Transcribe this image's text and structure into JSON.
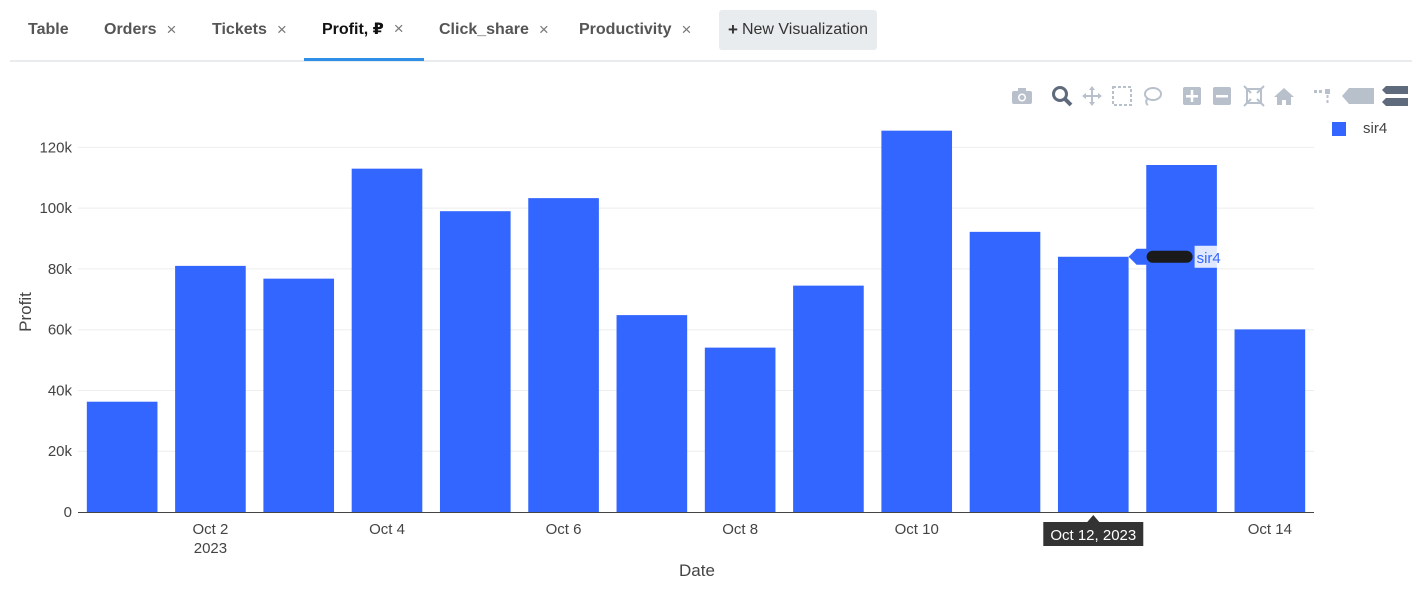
{
  "tabs": [
    {
      "label": "Table",
      "closable": false,
      "active": false
    },
    {
      "label": "Orders",
      "closable": true,
      "active": false
    },
    {
      "label": "Tickets",
      "closable": true,
      "active": false
    },
    {
      "label": "Profit, ₽",
      "closable": true,
      "active": true
    },
    {
      "label": "Click_share",
      "closable": true,
      "active": false
    },
    {
      "label": "Productivity",
      "closable": true,
      "active": false
    }
  ],
  "tab_close_glyph": "×",
  "new_viz_label": "New Visualization",
  "new_viz_icon": "+",
  "modebar_icons": [
    "camera-icon",
    "zoom-icon",
    "pan-icon",
    "box-select-icon",
    "lasso-select-icon",
    "zoom-in-icon",
    "zoom-out-icon",
    "autoscale-icon",
    "reset-axes-icon",
    "toggle-spike-lines-icon",
    "hover-closest-icon",
    "hover-compare-icon"
  ],
  "colors": {
    "bar": "#3366ff",
    "active_tab": "#2f8ee5",
    "grid": "#eeeeee",
    "tooltip_bg": "#333333"
  },
  "legend": {
    "name": "sir4"
  },
  "hover": {
    "series": "sir4",
    "x_label": "Oct 12, 2023"
  },
  "chart_data": {
    "type": "bar",
    "categories": [
      "2023-10-01",
      "2023-10-02",
      "2023-10-03",
      "2023-10-04",
      "2023-10-05",
      "2023-10-06",
      "2023-10-07",
      "2023-10-08",
      "2023-10-09",
      "2023-10-10",
      "2023-10-11",
      "2023-10-12",
      "2023-10-13",
      "2023-10-14"
    ],
    "series": [
      {
        "name": "sir4",
        "values": [
          36300,
          81000,
          76800,
          113000,
          99000,
          103300,
          64800,
          54100,
          74500,
          125500,
          92200,
          84000,
          114200,
          60100
        ]
      }
    ],
    "xlabel": "Date",
    "ylabel": "Profit",
    "ylim": [
      0,
      130000
    ],
    "yticks": [
      0,
      20000,
      40000,
      60000,
      80000,
      100000,
      120000
    ],
    "ytick_labels": [
      "0",
      "20k",
      "40k",
      "60k",
      "80k",
      "100k",
      "120k"
    ],
    "xtick_labels": [
      {
        "date": "2023-10-02",
        "lines": [
          "Oct 2",
          "2023"
        ]
      },
      {
        "date": "2023-10-04",
        "lines": [
          "Oct 4"
        ]
      },
      {
        "date": "2023-10-06",
        "lines": [
          "Oct 6"
        ]
      },
      {
        "date": "2023-10-08",
        "lines": [
          "Oct 8"
        ]
      },
      {
        "date": "2023-10-10",
        "lines": [
          "Oct 10"
        ]
      },
      {
        "date": "2023-10-14",
        "lines": [
          "Oct 14"
        ]
      }
    ],
    "grid": true,
    "legend_position": "top-right"
  }
}
